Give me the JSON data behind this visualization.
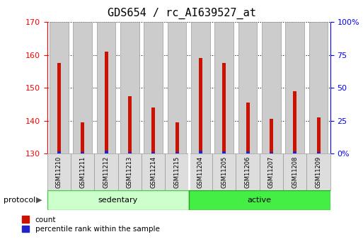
{
  "title": "GDS654 / rc_AI639527_at",
  "samples": [
    "GSM11210",
    "GSM11211",
    "GSM11212",
    "GSM11213",
    "GSM11214",
    "GSM11215",
    "GSM11204",
    "GSM11205",
    "GSM11206",
    "GSM11207",
    "GSM11208",
    "GSM11209"
  ],
  "groups": [
    "sedentary",
    "sedentary",
    "sedentary",
    "sedentary",
    "sedentary",
    "sedentary",
    "active",
    "active",
    "active",
    "active",
    "active",
    "active"
  ],
  "red_values": [
    157.5,
    139.5,
    161.0,
    147.5,
    144.0,
    139.5,
    159.0,
    157.5,
    145.5,
    140.5,
    149.0,
    141.0
  ],
  "blue_values": [
    2.0,
    1.5,
    2.5,
    1.5,
    1.0,
    1.5,
    2.5,
    2.0,
    2.0,
    1.0,
    2.0,
    1.5
  ],
  "red_base": 130,
  "ylim_left": [
    130,
    170
  ],
  "ylim_right": [
    0,
    100
  ],
  "yticks_left": [
    130,
    140,
    150,
    160,
    170
  ],
  "yticks_right": [
    0,
    25,
    50,
    75,
    100
  ],
  "right_tick_labels": [
    "0%",
    "25",
    "50",
    "75",
    "100%"
  ],
  "group_colors": {
    "sedentary": "#ccffcc",
    "active": "#44ee44"
  },
  "red_color": "#cc1100",
  "blue_color": "#2222cc",
  "bar_bg_color": "#cccccc",
  "title_fontsize": 11,
  "protocol_label": "protocol"
}
